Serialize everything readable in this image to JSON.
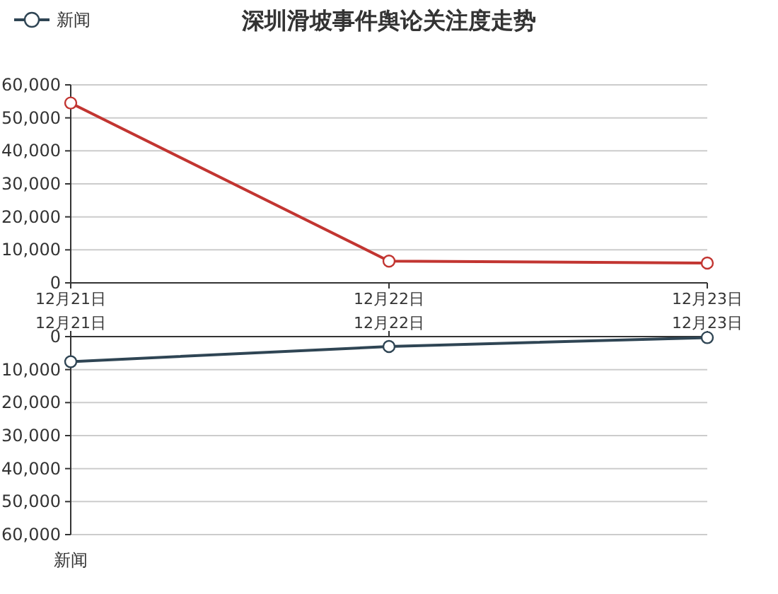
{
  "chart_data": [
    {
      "type": "line",
      "title": "深圳滑坡事件舆论关注度走势",
      "categories": [
        "12月21日",
        "12月22日",
        "12月23日"
      ],
      "series": [
        {
          "color": "#c23531",
          "values": [
            54500,
            6600,
            6000
          ]
        }
      ],
      "ylim": [
        0,
        60000
      ],
      "yticks": [
        {
          "value": 0,
          "label": "0"
        },
        {
          "value": 10000,
          "label": "10,000"
        },
        {
          "value": 20000,
          "label": "20,000"
        },
        {
          "value": 30000,
          "label": "30,000"
        },
        {
          "value": 40000,
          "label": "40,000"
        },
        {
          "value": 50000,
          "label": "50,000"
        },
        {
          "value": 60000,
          "label": "60,000"
        }
      ],
      "grid": "y",
      "marker": "circle",
      "legend": false
    },
    {
      "type": "line",
      "ylabel": "新闻",
      "categories": [
        "12月21日",
        "12月22日",
        "12月23日"
      ],
      "series": [
        {
          "name": "新闻",
          "color": "#2f4554",
          "values": [
            7600,
            3000,
            300
          ]
        }
      ],
      "ylim": [
        60000,
        0
      ],
      "yticks": [
        {
          "value": 0,
          "label": "0"
        },
        {
          "value": 10000,
          "label": "10,000"
        },
        {
          "value": 20000,
          "label": "20,000"
        },
        {
          "value": 30000,
          "label": "30,000"
        },
        {
          "value": 40000,
          "label": "40,000"
        },
        {
          "value": 50000,
          "label": "50,000"
        },
        {
          "value": 60000,
          "label": "60,000"
        }
      ],
      "grid": "y",
      "marker": "circle",
      "legend": "top left"
    }
  ]
}
